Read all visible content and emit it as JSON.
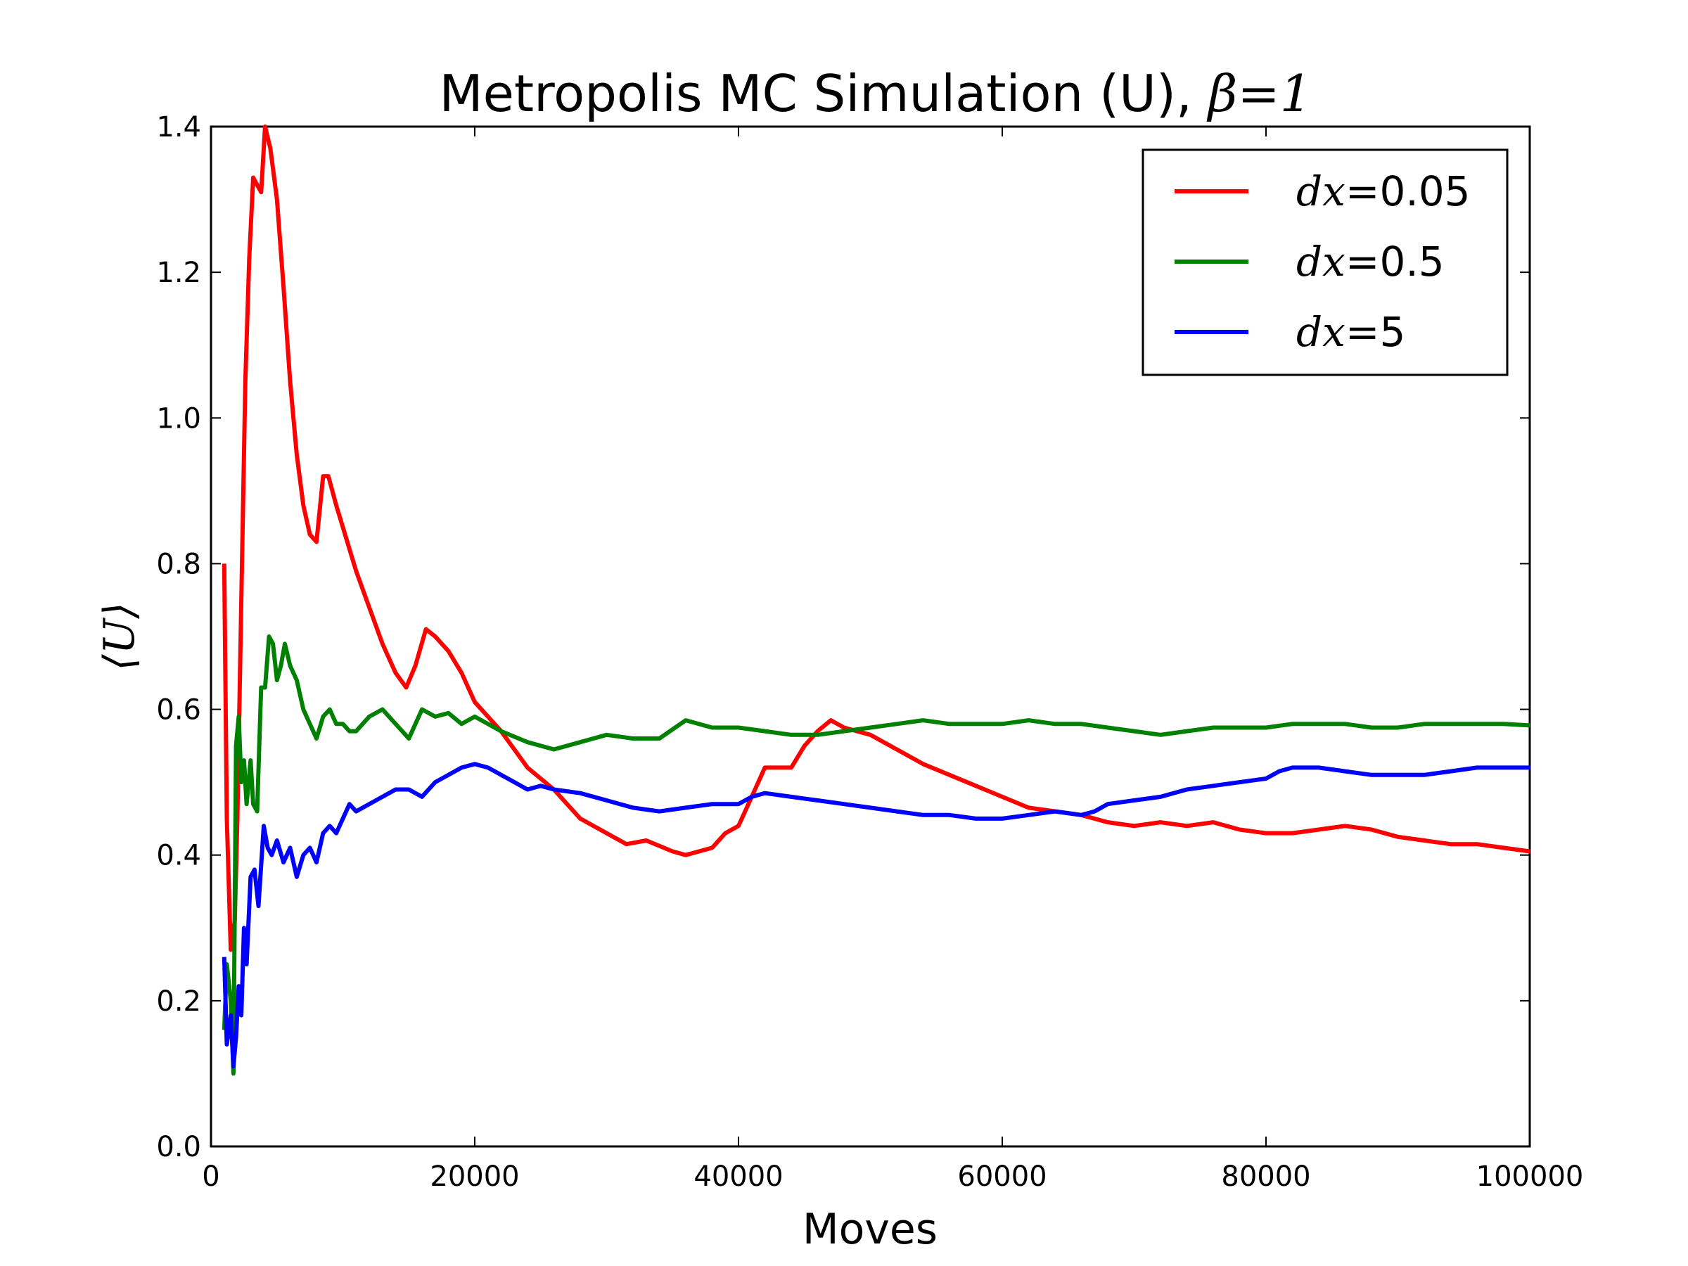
{
  "chart_data": {
    "type": "line",
    "title_prefix": "Metropolis MC Simulation (U), ",
    "title_math": "β=1",
    "xlabel": "Moves",
    "ylabel": "⟨U⟩",
    "xlim": [
      0,
      100000
    ],
    "ylim": [
      0.0,
      1.4
    ],
    "xticks": [
      0,
      20000,
      40000,
      60000,
      80000,
      100000
    ],
    "xtick_labels": [
      "0",
      "20000",
      "40000",
      "60000",
      "80000",
      "100000"
    ],
    "yticks": [
      0.0,
      0.2,
      0.4,
      0.6,
      0.8,
      1.0,
      1.2,
      1.4
    ],
    "ytick_labels": [
      "0.0",
      "0.2",
      "0.4",
      "0.6",
      "0.8",
      "1.0",
      "1.2",
      "1.4"
    ],
    "grid": false,
    "legend_position": "top-right",
    "series": [
      {
        "name_math": "dx",
        "name_value": "=0.05",
        "color": "#ff0000",
        "points": [
          [
            1000,
            0.8
          ],
          [
            1200,
            0.45
          ],
          [
            1500,
            0.27
          ],
          [
            1800,
            0.31
          ],
          [
            2000,
            0.45
          ],
          [
            2300,
            0.75
          ],
          [
            2600,
            1.05
          ],
          [
            2900,
            1.22
          ],
          [
            3200,
            1.33
          ],
          [
            3500,
            1.32
          ],
          [
            3800,
            1.31
          ],
          [
            4100,
            1.4
          ],
          [
            4500,
            1.37
          ],
          [
            5000,
            1.3
          ],
          [
            5500,
            1.18
          ],
          [
            6000,
            1.05
          ],
          [
            6500,
            0.95
          ],
          [
            7000,
            0.88
          ],
          [
            7500,
            0.84
          ],
          [
            8000,
            0.83
          ],
          [
            8500,
            0.92
          ],
          [
            8900,
            0.92
          ],
          [
            9500,
            0.88
          ],
          [
            10000,
            0.85
          ],
          [
            10500,
            0.82
          ],
          [
            11000,
            0.79
          ],
          [
            12000,
            0.74
          ],
          [
            13000,
            0.69
          ],
          [
            14000,
            0.65
          ],
          [
            14800,
            0.63
          ],
          [
            15500,
            0.66
          ],
          [
            16300,
            0.71
          ],
          [
            17000,
            0.7
          ],
          [
            18000,
            0.68
          ],
          [
            19000,
            0.65
          ],
          [
            20000,
            0.61
          ],
          [
            22000,
            0.57
          ],
          [
            24000,
            0.52
          ],
          [
            26000,
            0.49
          ],
          [
            28000,
            0.45
          ],
          [
            30000,
            0.43
          ],
          [
            31500,
            0.415
          ],
          [
            33000,
            0.42
          ],
          [
            35000,
            0.405
          ],
          [
            36000,
            0.4
          ],
          [
            37000,
            0.405
          ],
          [
            38000,
            0.41
          ],
          [
            39000,
            0.43
          ],
          [
            40000,
            0.44
          ],
          [
            41000,
            0.48
          ],
          [
            42000,
            0.52
          ],
          [
            43000,
            0.52
          ],
          [
            44000,
            0.52
          ],
          [
            45000,
            0.55
          ],
          [
            46000,
            0.57
          ],
          [
            47000,
            0.585
          ],
          [
            48000,
            0.575
          ],
          [
            50000,
            0.565
          ],
          [
            52000,
            0.545
          ],
          [
            54000,
            0.525
          ],
          [
            56000,
            0.51
          ],
          [
            58000,
            0.495
          ],
          [
            60000,
            0.48
          ],
          [
            62000,
            0.465
          ],
          [
            64000,
            0.46
          ],
          [
            66000,
            0.455
          ],
          [
            68000,
            0.445
          ],
          [
            70000,
            0.44
          ],
          [
            72000,
            0.445
          ],
          [
            74000,
            0.44
          ],
          [
            76000,
            0.445
          ],
          [
            78000,
            0.435
          ],
          [
            80000,
            0.43
          ],
          [
            82000,
            0.43
          ],
          [
            84000,
            0.435
          ],
          [
            86000,
            0.44
          ],
          [
            88000,
            0.435
          ],
          [
            90000,
            0.425
          ],
          [
            92000,
            0.42
          ],
          [
            94000,
            0.415
          ],
          [
            96000,
            0.415
          ],
          [
            98000,
            0.41
          ],
          [
            100000,
            0.405
          ]
        ]
      },
      {
        "name_math": "dx",
        "name_value": "=0.5",
        "color": "#008000",
        "points": [
          [
            1000,
            0.16
          ],
          [
            1200,
            0.25
          ],
          [
            1500,
            0.2
          ],
          [
            1700,
            0.1
          ],
          [
            1900,
            0.55
          ],
          [
            2100,
            0.59
          ],
          [
            2300,
            0.5
          ],
          [
            2500,
            0.53
          ],
          [
            2700,
            0.47
          ],
          [
            3000,
            0.53
          ],
          [
            3200,
            0.47
          ],
          [
            3500,
            0.46
          ],
          [
            3800,
            0.63
          ],
          [
            4100,
            0.63
          ],
          [
            4400,
            0.7
          ],
          [
            4700,
            0.69
          ],
          [
            5000,
            0.64
          ],
          [
            5300,
            0.66
          ],
          [
            5600,
            0.69
          ],
          [
            6000,
            0.66
          ],
          [
            6500,
            0.64
          ],
          [
            7000,
            0.6
          ],
          [
            7500,
            0.58
          ],
          [
            8000,
            0.56
          ],
          [
            8500,
            0.59
          ],
          [
            9000,
            0.6
          ],
          [
            9500,
            0.58
          ],
          [
            10000,
            0.58
          ],
          [
            10500,
            0.57
          ],
          [
            11000,
            0.57
          ],
          [
            12000,
            0.59
          ],
          [
            13000,
            0.6
          ],
          [
            14000,
            0.58
          ],
          [
            15000,
            0.56
          ],
          [
            16000,
            0.6
          ],
          [
            17000,
            0.59
          ],
          [
            18000,
            0.595
          ],
          [
            19000,
            0.58
          ],
          [
            20000,
            0.59
          ],
          [
            22000,
            0.57
          ],
          [
            24000,
            0.555
          ],
          [
            26000,
            0.545
          ],
          [
            28000,
            0.555
          ],
          [
            30000,
            0.565
          ],
          [
            32000,
            0.56
          ],
          [
            34000,
            0.56
          ],
          [
            36000,
            0.585
          ],
          [
            38000,
            0.575
          ],
          [
            40000,
            0.575
          ],
          [
            42000,
            0.57
          ],
          [
            44000,
            0.565
          ],
          [
            46000,
            0.565
          ],
          [
            48000,
            0.57
          ],
          [
            50000,
            0.575
          ],
          [
            52000,
            0.58
          ],
          [
            54000,
            0.585
          ],
          [
            56000,
            0.58
          ],
          [
            58000,
            0.58
          ],
          [
            60000,
            0.58
          ],
          [
            62000,
            0.585
          ],
          [
            64000,
            0.58
          ],
          [
            66000,
            0.58
          ],
          [
            68000,
            0.575
          ],
          [
            70000,
            0.57
          ],
          [
            72000,
            0.565
          ],
          [
            74000,
            0.57
          ],
          [
            76000,
            0.575
          ],
          [
            78000,
            0.575
          ],
          [
            80000,
            0.575
          ],
          [
            82000,
            0.58
          ],
          [
            84000,
            0.58
          ],
          [
            86000,
            0.58
          ],
          [
            88000,
            0.575
          ],
          [
            90000,
            0.575
          ],
          [
            92000,
            0.58
          ],
          [
            94000,
            0.58
          ],
          [
            96000,
            0.58
          ],
          [
            98000,
            0.58
          ],
          [
            100000,
            0.578
          ]
        ]
      },
      {
        "name_math": "dx",
        "name_value": "=5",
        "color": "#0000ff",
        "points": [
          [
            1000,
            0.26
          ],
          [
            1200,
            0.14
          ],
          [
            1500,
            0.18
          ],
          [
            1700,
            0.11
          ],
          [
            1900,
            0.15
          ],
          [
            2100,
            0.22
          ],
          [
            2300,
            0.18
          ],
          [
            2500,
            0.3
          ],
          [
            2700,
            0.25
          ],
          [
            3000,
            0.37
          ],
          [
            3300,
            0.38
          ],
          [
            3600,
            0.33
          ],
          [
            4000,
            0.44
          ],
          [
            4300,
            0.41
          ],
          [
            4600,
            0.4
          ],
          [
            5000,
            0.42
          ],
          [
            5500,
            0.39
          ],
          [
            6000,
            0.41
          ],
          [
            6500,
            0.37
          ],
          [
            7000,
            0.4
          ],
          [
            7500,
            0.41
          ],
          [
            8000,
            0.39
          ],
          [
            8500,
            0.43
          ],
          [
            9000,
            0.44
          ],
          [
            9500,
            0.43
          ],
          [
            10000,
            0.45
          ],
          [
            10500,
            0.47
          ],
          [
            11000,
            0.46
          ],
          [
            12000,
            0.47
          ],
          [
            13000,
            0.48
          ],
          [
            14000,
            0.49
          ],
          [
            15000,
            0.49
          ],
          [
            16000,
            0.48
          ],
          [
            17000,
            0.5
          ],
          [
            18000,
            0.51
          ],
          [
            19000,
            0.52
          ],
          [
            20000,
            0.525
          ],
          [
            21000,
            0.52
          ],
          [
            22000,
            0.51
          ],
          [
            23000,
            0.5
          ],
          [
            24000,
            0.49
          ],
          [
            25000,
            0.495
          ],
          [
            26000,
            0.49
          ],
          [
            28000,
            0.485
          ],
          [
            30000,
            0.475
          ],
          [
            32000,
            0.465
          ],
          [
            34000,
            0.46
          ],
          [
            36000,
            0.465
          ],
          [
            38000,
            0.47
          ],
          [
            40000,
            0.47
          ],
          [
            41000,
            0.48
          ],
          [
            42000,
            0.485
          ],
          [
            44000,
            0.48
          ],
          [
            46000,
            0.475
          ],
          [
            48000,
            0.47
          ],
          [
            50000,
            0.465
          ],
          [
            52000,
            0.46
          ],
          [
            54000,
            0.455
          ],
          [
            56000,
            0.455
          ],
          [
            58000,
            0.45
          ],
          [
            60000,
            0.45
          ],
          [
            62000,
            0.455
          ],
          [
            64000,
            0.46
          ],
          [
            66000,
            0.455
          ],
          [
            67000,
            0.46
          ],
          [
            68000,
            0.47
          ],
          [
            70000,
            0.475
          ],
          [
            72000,
            0.48
          ],
          [
            74000,
            0.49
          ],
          [
            76000,
            0.495
          ],
          [
            78000,
            0.5
          ],
          [
            80000,
            0.505
          ],
          [
            81000,
            0.515
          ],
          [
            82000,
            0.52
          ],
          [
            84000,
            0.52
          ],
          [
            86000,
            0.515
          ],
          [
            88000,
            0.51
          ],
          [
            90000,
            0.51
          ],
          [
            92000,
            0.51
          ],
          [
            94000,
            0.515
          ],
          [
            96000,
            0.52
          ],
          [
            98000,
            0.52
          ],
          [
            100000,
            0.52
          ]
        ]
      }
    ]
  }
}
